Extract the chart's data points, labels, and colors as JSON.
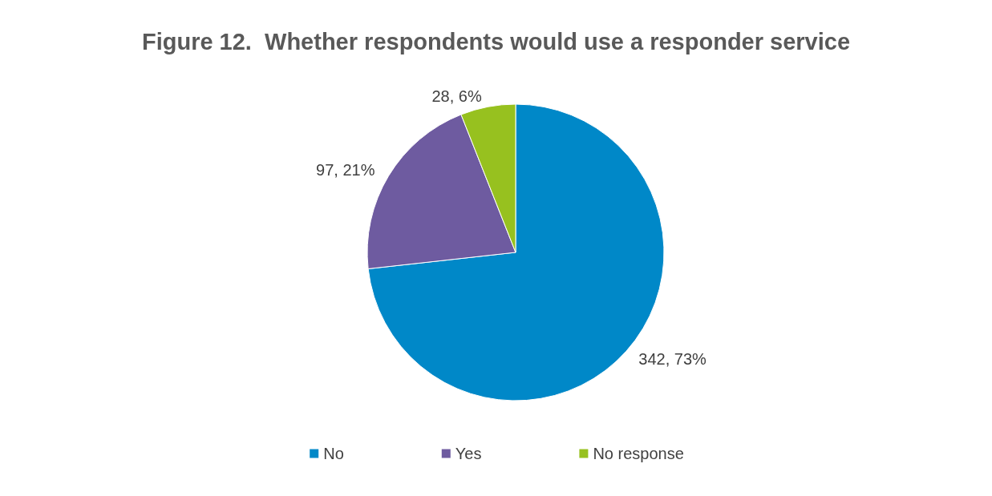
{
  "chart_data": {
    "type": "pie",
    "title": "Figure 12.  Whether respondents would use a responder service",
    "categories": [
      "No",
      "Yes",
      "No response"
    ],
    "values": [
      342,
      97,
      28
    ],
    "colors": [
      "#0088c8",
      "#6e5ba0",
      "#97c11f"
    ],
    "value_labels": [
      "342, 73%",
      "97, 21%",
      "28, 6%"
    ],
    "legend": "bottom"
  }
}
